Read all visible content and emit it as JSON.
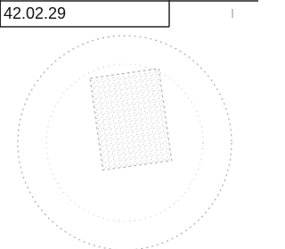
{
  "cell": {
    "text": "42.02.29"
  }
}
